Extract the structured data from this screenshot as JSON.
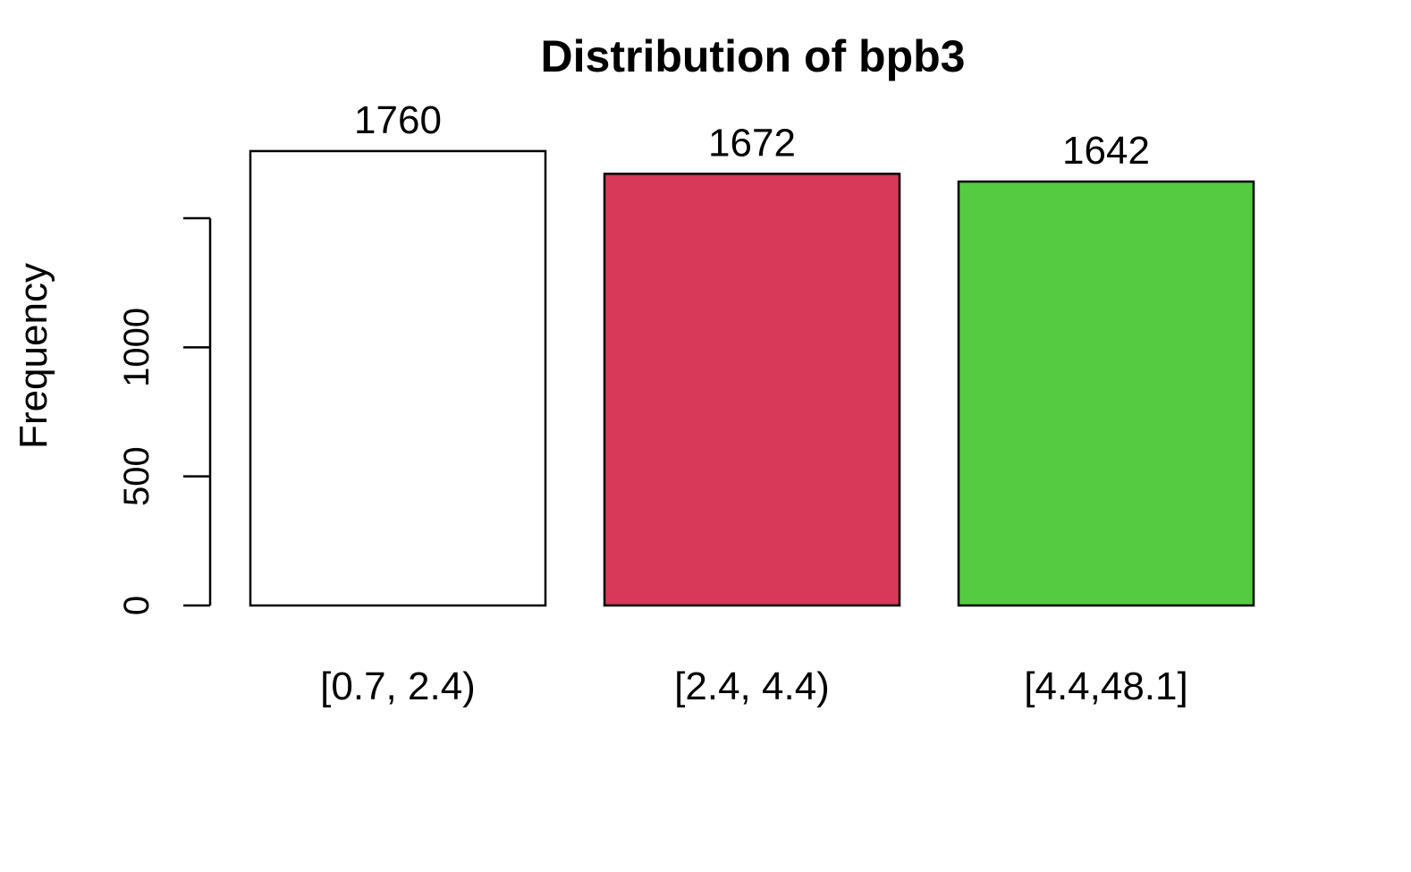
{
  "chart_data": {
    "type": "bar",
    "title": "Distribution of bpb3",
    "xlabel": "",
    "ylabel": "Frequency",
    "categories": [
      "[0.7, 2.4)",
      "[2.4, 4.4)",
      "[4.4,48.1]"
    ],
    "values": [
      1760,
      1672,
      1642
    ],
    "value_labels": [
      "1760",
      "1672",
      "1642"
    ],
    "colors": [
      "#ffffff",
      "#d63a58",
      "#54cb40"
    ],
    "yticks": [
      0,
      500,
      1000,
      1500
    ],
    "ytick_labels": [
      "0",
      "500",
      "1000",
      ""
    ],
    "ylim": [
      0,
      1500
    ],
    "grid": false,
    "legend": "none"
  }
}
